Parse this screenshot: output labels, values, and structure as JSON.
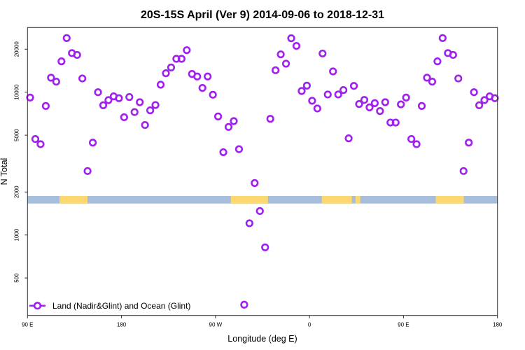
{
  "chart_data": {
    "type": "scatter",
    "title": "20S-15S April (Ver 9)   2014-09-06 to 2018-12-31",
    "xlabel": "Longitude (deg E)",
    "ylabel": "N Total",
    "y_scale": "log",
    "xlim": [
      90,
      540
    ],
    "ylim": [
      270,
      27000
    ],
    "x_ticks": [
      {
        "value": 90,
        "label": "90 E"
      },
      {
        "value": 180,
        "label": "180"
      },
      {
        "value": 270,
        "label": "90 W"
      },
      {
        "value": 360,
        "label": "0"
      },
      {
        "value": 450,
        "label": "90 E"
      },
      {
        "value": 540,
        "label": "180"
      }
    ],
    "y_ticks": [
      {
        "value": 500,
        "label": "500"
      },
      {
        "value": 1000,
        "label": "1000"
      },
      {
        "value": 2000,
        "label": "2000"
      },
      {
        "value": 5000,
        "label": "5000"
      },
      {
        "value": 10000,
        "label": "10000"
      },
      {
        "value": 20000,
        "label": "20000"
      }
    ],
    "grid": false,
    "legend_position": "bottom-left",
    "series": [
      {
        "name": "Land (Nadir&Glint) and Ocean (Glint)",
        "color": "#a020f0",
        "x_start": 92.5,
        "x_step": 5,
        "values": [
          9170,
          4700,
          4325,
          8010,
          12630,
          11850,
          16440,
          23930,
          18790,
          18240,
          12480,
          2805,
          4435,
          10000,
          8100,
          8800,
          9350,
          9080,
          6680,
          9250,
          7260,
          8510,
          5890,
          7460,
          8130,
          11280,
          13570,
          14900,
          17130,
          17130,
          19690,
          13420,
          12880,
          10710,
          12880,
          9600,
          6760,
          3800,
          5710,
          6275,
          3990,
          325,
          1208,
          2310,
          1472,
          819,
          6510,
          14250,
          18400,
          15830,
          23870,
          21090,
          10190,
          11110,
          8710,
          7690,
          18660,
          9640,
          13980,
          9640,
          10350,
          4750,
          11070,
          8260,
          8830,
          7830,
          8380,
          7380,
          8510,
          6130,
          6130,
          8220,
          9170,
          4700,
          4325,
          8010,
          12630,
          11850,
          16440,
          23930,
          18790,
          18240,
          12480,
          2805,
          4435,
          10000,
          8100,
          8800,
          9350,
          9080
        ]
      }
    ],
    "surface_band": {
      "ocean_color": "#a6bddb",
      "land_color": "#fdd870",
      "y_range": [
        1650,
        1900
      ],
      "land_segments": [
        [
          120.6,
          147.4
        ],
        [
          284.7,
          320.2
        ],
        [
          371.8,
          400.6
        ],
        [
          404,
          408.6
        ],
        [
          480.9,
          507.7
        ]
      ]
    }
  }
}
